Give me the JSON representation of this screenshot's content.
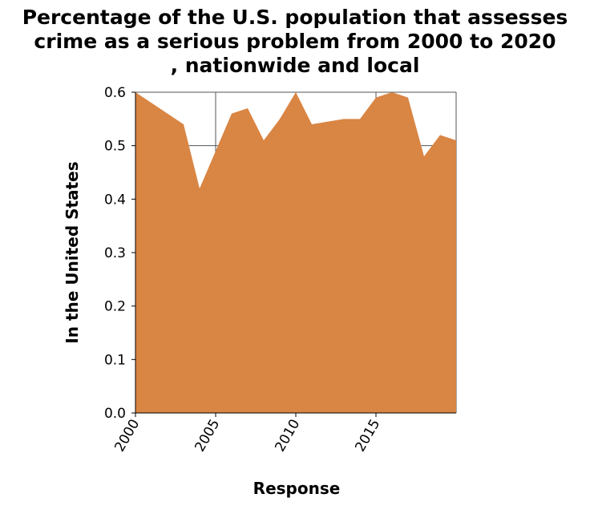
{
  "chart_data": {
    "type": "area",
    "title": "Percentage of the U.S. population that assesses crime as a serious problem from 2000 to 2020 , nationwide and local",
    "title_lines": [
      "Percentage of the U.S. population that assesses",
      "crime as a serious problem from 2000 to 2020",
      ", nationwide and local"
    ],
    "xlabel": "Response",
    "ylabel": "In the United States",
    "xlim": [
      2000,
      2020
    ],
    "ylim": [
      0,
      0.6
    ],
    "x_ticks": [
      2000,
      2005,
      2010,
      2015
    ],
    "x_tick_labels": [
      "2000",
      "2005",
      "2010",
      "2015"
    ],
    "y_ticks": [
      0,
      0.1,
      0.2,
      0.3,
      0.4,
      0.5,
      0.6
    ],
    "y_tick_labels": [
      "0.0",
      "0.1",
      "0.2",
      "0.3",
      "0.4",
      "0.5",
      "0.6"
    ],
    "grid": true,
    "fill_color": "#d98544",
    "x": [
      2000,
      2003,
      2004,
      2005,
      2006,
      2007,
      2008,
      2009,
      2010,
      2011,
      2012,
      2013,
      2014,
      2015,
      2016,
      2017,
      2018,
      2019,
      2020
    ],
    "y": [
      0.6,
      0.54,
      0.42,
      0.49,
      0.56,
      0.57,
      0.51,
      0.55,
      0.6,
      0.54,
      0.545,
      0.55,
      0.55,
      0.59,
      0.6,
      0.59,
      0.48,
      0.52,
      0.51
    ]
  }
}
